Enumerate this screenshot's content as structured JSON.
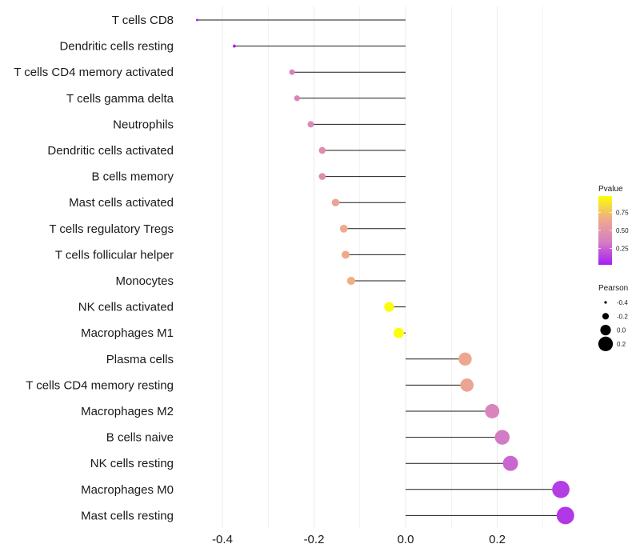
{
  "chart_data": {
    "type": "lollipop",
    "title": "",
    "xlabel": "",
    "ylabel": "",
    "xlim": [
      -0.5,
      0.37
    ],
    "x_ticks": [
      -0.4,
      -0.2,
      0.0,
      0.2
    ],
    "x_tick_labels": [
      "-0.4",
      "-0.2",
      "0.0",
      "0.2"
    ],
    "grid": true,
    "categories": [
      "T cells CD8",
      "Dendritic cells resting",
      "T cells CD4 memory activated",
      "T cells gamma delta",
      "Neutrophils",
      "Dendritic cells activated",
      "B cells memory",
      "Mast cells activated",
      "T cells regulatory  Tregs",
      "T cells follicular helper",
      "Monocytes",
      "NK cells activated",
      "Macrophages M1",
      "Plasma cells",
      "T cells CD4 memory resting",
      "Macrophages M2",
      "B cells naive",
      "NK cells resting",
      "Macrophages M0",
      "Mast cells resting"
    ],
    "pearson": [
      -0.455,
      -0.374,
      -0.248,
      -0.237,
      -0.207,
      -0.182,
      -0.182,
      -0.153,
      -0.135,
      -0.131,
      -0.119,
      -0.036,
      -0.015,
      0.13,
      0.134,
      0.189,
      0.211,
      0.229,
      0.339,
      0.349
    ],
    "pvalue": [
      0.02,
      0.04,
      0.36,
      0.38,
      0.42,
      0.45,
      0.46,
      0.6,
      0.65,
      0.65,
      0.68,
      0.97,
      0.98,
      0.63,
      0.61,
      0.38,
      0.33,
      0.26,
      0.12,
      0.1
    ],
    "legend": {
      "color": {
        "title": "Pvalue",
        "ticks": [
          0.25,
          0.5,
          0.75
        ],
        "tick_labels": [
          "0.25",
          "0.50",
          "0.75"
        ],
        "range": [
          0.02,
          0.98
        ],
        "colors": [
          "#a61ff2",
          "#d57ec4",
          "#efab8a",
          "#fbff05"
        ]
      },
      "size": {
        "title": "Pearson",
        "values": [
          -0.4,
          -0.2,
          0.0,
          0.2
        ],
        "labels": [
          "-0.4",
          "-0.2",
          "0.0",
          "0.2"
        ]
      }
    },
    "colors": {
      "segment": "#1a1a1a",
      "grid": "#ebebeb",
      "background": "#ffffff"
    }
  }
}
